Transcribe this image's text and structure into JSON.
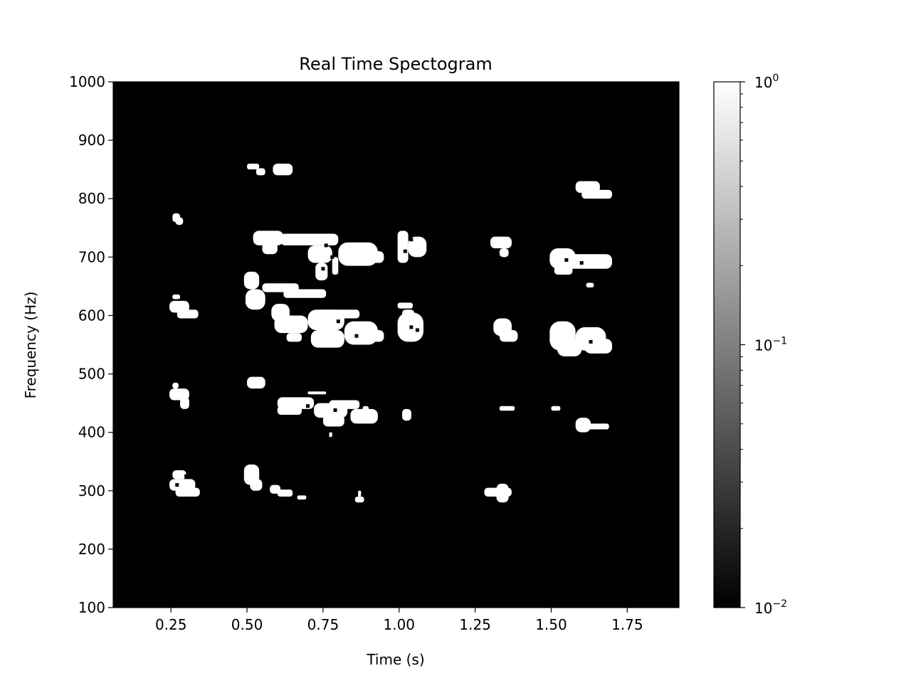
{
  "chart_data": {
    "type": "heatmap",
    "title": "Real Time Spectogram",
    "xlabel": "Time (s)",
    "ylabel": "Frequency (Hz)",
    "xlim": [
      0.06,
      1.92
    ],
    "ylim": [
      100,
      1000
    ],
    "x_ticks": [
      0.25,
      0.5,
      0.75,
      1.0,
      1.25,
      1.5,
      1.75
    ],
    "x_tick_labels": [
      "0.25",
      "0.50",
      "0.75",
      "1.00",
      "1.25",
      "1.50",
      "1.75"
    ],
    "y_ticks": [
      100,
      200,
      300,
      400,
      500,
      600,
      700,
      800,
      900,
      1000
    ],
    "y_tick_labels": [
      "100",
      "200",
      "300",
      "400",
      "500",
      "600",
      "700",
      "800",
      "900",
      "1000"
    ],
    "colorscale": "gray",
    "colorbar": {
      "scale": "log",
      "range": [
        0.01,
        1
      ],
      "ticks": [
        {
          "value": 1,
          "base": "10",
          "exp": "0"
        },
        {
          "value": 0.1,
          "base": "10",
          "exp": "−1"
        },
        {
          "value": 0.01,
          "base": "10",
          "exp": "−2"
        }
      ]
    },
    "background_value": 0.01,
    "blob_value": 1,
    "blobs": [
      {
        "t0": 0.255,
        "t1": 0.28,
        "f0": 760,
        "f1": 775
      },
      {
        "t0": 0.265,
        "t1": 0.29,
        "f0": 755,
        "f1": 768
      },
      {
        "t0": 0.5,
        "t1": 0.54,
        "f0": 850,
        "f1": 860
      },
      {
        "t0": 0.53,
        "t1": 0.56,
        "f0": 840,
        "f1": 852
      },
      {
        "t0": 0.585,
        "t1": 0.65,
        "f0": 840,
        "f1": 860
      },
      {
        "t0": 1.58,
        "t1": 1.66,
        "f0": 810,
        "f1": 830
      },
      {
        "t0": 1.6,
        "t1": 1.7,
        "f0": 800,
        "f1": 815
      },
      {
        "t0": 0.52,
        "t1": 0.62,
        "f0": 720,
        "f1": 745
      },
      {
        "t0": 0.55,
        "t1": 0.6,
        "f0": 705,
        "f1": 725
      },
      {
        "t0": 0.61,
        "t1": 0.8,
        "f0": 720,
        "f1": 740
      },
      {
        "t0": 0.7,
        "t1": 0.78,
        "f0": 690,
        "f1": 720
      },
      {
        "t0": 0.725,
        "t1": 0.765,
        "f0": 660,
        "f1": 690
      },
      {
        "t0": 0.78,
        "t1": 0.8,
        "f0": 670,
        "f1": 700
      },
      {
        "t0": 0.8,
        "t1": 0.93,
        "f0": 685,
        "f1": 725
      },
      {
        "t0": 0.88,
        "t1": 0.95,
        "f0": 690,
        "f1": 710
      },
      {
        "t0": 0.995,
        "t1": 1.03,
        "f0": 690,
        "f1": 745
      },
      {
        "t0": 1.03,
        "t1": 1.09,
        "f0": 700,
        "f1": 735
      },
      {
        "t0": 1.3,
        "t1": 1.37,
        "f0": 715,
        "f1": 735
      },
      {
        "t0": 1.33,
        "t1": 1.36,
        "f0": 700,
        "f1": 715
      },
      {
        "t0": 1.495,
        "t1": 1.58,
        "f0": 680,
        "f1": 715
      },
      {
        "t0": 1.55,
        "t1": 1.7,
        "f0": 680,
        "f1": 705
      },
      {
        "t0": 1.51,
        "t1": 1.57,
        "f0": 670,
        "f1": 685
      },
      {
        "t0": 1.615,
        "t1": 1.64,
        "f0": 648,
        "f1": 656
      },
      {
        "t0": 0.49,
        "t1": 0.54,
        "f0": 645,
        "f1": 675
      },
      {
        "t0": 0.495,
        "t1": 0.56,
        "f0": 610,
        "f1": 645
      },
      {
        "t0": 0.55,
        "t1": 0.67,
        "f0": 640,
        "f1": 655
      },
      {
        "t0": 0.62,
        "t1": 0.76,
        "f0": 630,
        "f1": 645
      },
      {
        "t0": 0.255,
        "t1": 0.28,
        "f0": 628,
        "f1": 636
      },
      {
        "t0": 0.245,
        "t1": 0.31,
        "f0": 605,
        "f1": 625
      },
      {
        "t0": 0.27,
        "t1": 0.34,
        "f0": 595,
        "f1": 610
      },
      {
        "t0": 0.995,
        "t1": 1.045,
        "f0": 612,
        "f1": 622
      },
      {
        "t0": 0.58,
        "t1": 0.64,
        "f0": 590,
        "f1": 620
      },
      {
        "t0": 0.59,
        "t1": 0.7,
        "f0": 570,
        "f1": 600
      },
      {
        "t0": 0.7,
        "t1": 0.82,
        "f0": 575,
        "f1": 610
      },
      {
        "t0": 0.73,
        "t1": 0.87,
        "f0": 595,
        "f1": 610
      },
      {
        "t0": 0.71,
        "t1": 0.82,
        "f0": 545,
        "f1": 575
      },
      {
        "t0": 0.82,
        "t1": 0.93,
        "f0": 550,
        "f1": 590
      },
      {
        "t0": 0.87,
        "t1": 0.95,
        "f0": 555,
        "f1": 575
      },
      {
        "t0": 0.63,
        "t1": 0.68,
        "f0": 555,
        "f1": 570
      },
      {
        "t0": 0.995,
        "t1": 1.08,
        "f0": 555,
        "f1": 605
      },
      {
        "t0": 1.01,
        "t1": 1.05,
        "f0": 595,
        "f1": 610
      },
      {
        "t0": 1.31,
        "t1": 1.37,
        "f0": 565,
        "f1": 595
      },
      {
        "t0": 1.33,
        "t1": 1.39,
        "f0": 555,
        "f1": 575
      },
      {
        "t0": 1.495,
        "t1": 1.58,
        "f0": 540,
        "f1": 590
      },
      {
        "t0": 1.52,
        "t1": 1.6,
        "f0": 530,
        "f1": 560
      },
      {
        "t0": 1.58,
        "t1": 1.68,
        "f0": 540,
        "f1": 580
      },
      {
        "t0": 1.61,
        "t1": 1.7,
        "f0": 535,
        "f1": 560
      },
      {
        "t0": 0.5,
        "t1": 0.56,
        "f0": 475,
        "f1": 495
      },
      {
        "t0": 0.255,
        "t1": 0.275,
        "f0": 475,
        "f1": 485
      },
      {
        "t0": 0.245,
        "t1": 0.31,
        "f0": 455,
        "f1": 475
      },
      {
        "t0": 0.28,
        "t1": 0.31,
        "f0": 440,
        "f1": 460
      },
      {
        "t0": 0.6,
        "t1": 0.72,
        "f0": 440,
        "f1": 460
      },
      {
        "t0": 0.72,
        "t1": 0.83,
        "f0": 425,
        "f1": 450
      },
      {
        "t0": 0.77,
        "t1": 0.87,
        "f0": 440,
        "f1": 455
      },
      {
        "t0": 0.7,
        "t1": 0.76,
        "f0": 465,
        "f1": 470
      },
      {
        "t0": 0.75,
        "t1": 0.82,
        "f0": 410,
        "f1": 430
      },
      {
        "t0": 0.84,
        "t1": 0.93,
        "f0": 415,
        "f1": 440
      },
      {
        "t0": 0.88,
        "t1": 0.9,
        "f0": 435,
        "f1": 445
      },
      {
        "t0": 0.6,
        "t1": 0.68,
        "f0": 430,
        "f1": 445
      },
      {
        "t0": 0.77,
        "t1": 0.78,
        "f0": 392,
        "f1": 400
      },
      {
        "t0": 1.01,
        "t1": 1.04,
        "f0": 420,
        "f1": 440
      },
      {
        "t0": 1.33,
        "t1": 1.38,
        "f0": 437,
        "f1": 445
      },
      {
        "t0": 1.5,
        "t1": 1.53,
        "f0": 437,
        "f1": 445
      },
      {
        "t0": 1.58,
        "t1": 1.63,
        "f0": 400,
        "f1": 425
      },
      {
        "t0": 1.59,
        "t1": 1.69,
        "f0": 405,
        "f1": 415
      },
      {
        "t0": 0.255,
        "t1": 0.3,
        "f0": 320,
        "f1": 335
      },
      {
        "t0": 0.245,
        "t1": 0.33,
        "f0": 300,
        "f1": 320
      },
      {
        "t0": 0.265,
        "t1": 0.345,
        "f0": 290,
        "f1": 305
      },
      {
        "t0": 0.49,
        "t1": 0.54,
        "f0": 310,
        "f1": 345
      },
      {
        "t0": 0.51,
        "t1": 0.55,
        "f0": 300,
        "f1": 320
      },
      {
        "t0": 0.575,
        "t1": 0.61,
        "f0": 295,
        "f1": 310
      },
      {
        "t0": 0.6,
        "t1": 0.65,
        "f0": 290,
        "f1": 302
      },
      {
        "t0": 0.665,
        "t1": 0.695,
        "f0": 285,
        "f1": 292
      },
      {
        "t0": 0.855,
        "t1": 0.885,
        "f0": 280,
        "f1": 290
      },
      {
        "t0": 0.865,
        "t1": 0.875,
        "f0": 290,
        "f1": 300
      },
      {
        "t0": 1.28,
        "t1": 1.37,
        "f0": 290,
        "f1": 305
      },
      {
        "t0": 1.32,
        "t1": 1.36,
        "f0": 280,
        "f1": 312
      }
    ],
    "dark_specks": [
      {
        "t": 0.78,
        "f": 700
      },
      {
        "t": 0.75,
        "f": 680
      },
      {
        "t": 1.02,
        "f": 710
      },
      {
        "t": 1.04,
        "f": 730
      },
      {
        "t": 1.55,
        "f": 695
      },
      {
        "t": 1.6,
        "f": 690
      },
      {
        "t": 0.8,
        "f": 590
      },
      {
        "t": 0.86,
        "f": 565
      },
      {
        "t": 0.7,
        "f": 445
      },
      {
        "t": 0.79,
        "f": 438
      },
      {
        "t": 1.04,
        "f": 580
      },
      {
        "t": 1.63,
        "f": 555
      },
      {
        "t": 0.27,
        "f": 310
      },
      {
        "t": 0.3,
        "f": 325
      },
      {
        "t": 0.76,
        "f": 720
      },
      {
        "t": 1.06,
        "f": 575
      }
    ]
  }
}
